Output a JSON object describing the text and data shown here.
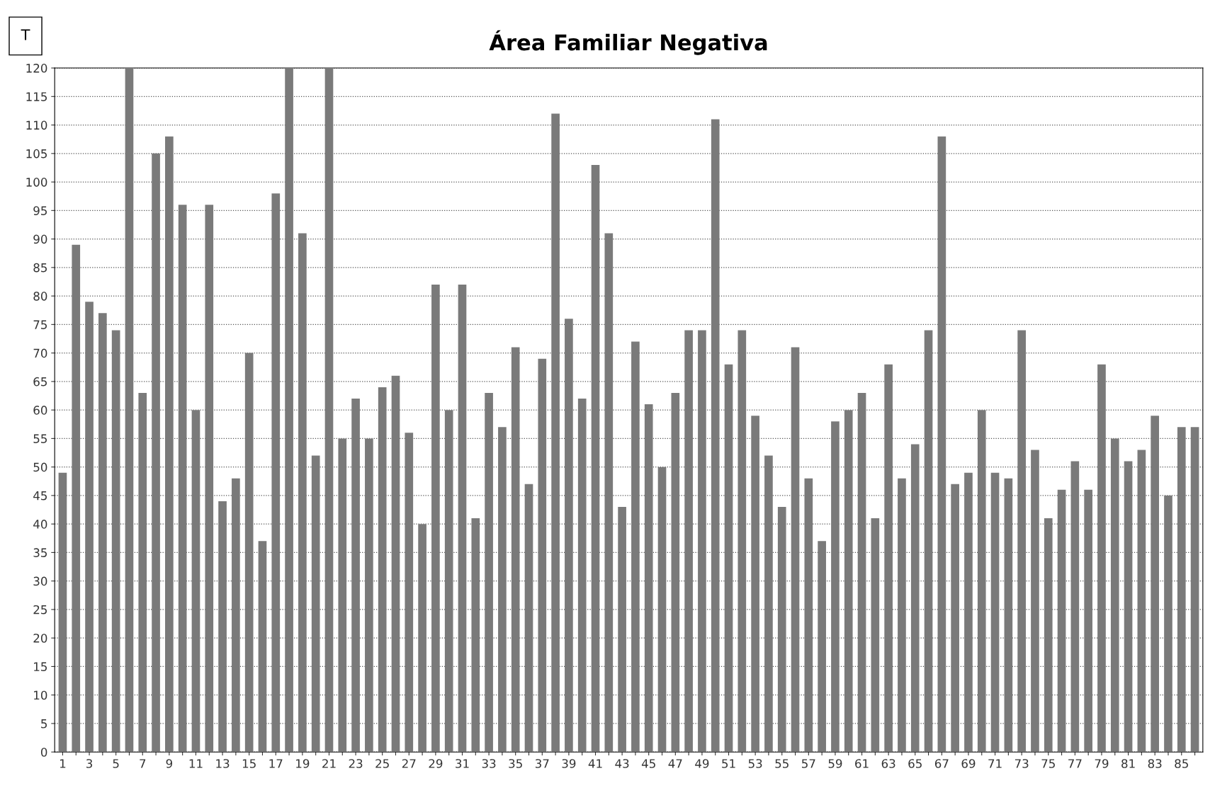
{
  "chart_data": {
    "type": "bar",
    "title": "Área Familiar Negativa",
    "ylabel": "T",
    "categories": [
      "1",
      null,
      "3",
      null,
      "5",
      null,
      "7",
      null,
      "9",
      null,
      "11",
      null,
      "13",
      null,
      "15",
      null,
      "17",
      null,
      "19",
      null,
      "21",
      null,
      "23",
      null,
      "25",
      null,
      "27",
      null,
      "29",
      null,
      "31",
      null,
      "33",
      null,
      "35",
      null,
      "37",
      null,
      "39",
      null,
      "41",
      null,
      "43",
      null,
      "45",
      null,
      "47",
      null,
      "49",
      null,
      "51",
      null,
      "53",
      null,
      "55",
      null,
      "57",
      null,
      "59",
      null,
      "61",
      null,
      "63",
      null,
      "65",
      null,
      "67",
      null,
      "69",
      null,
      "71",
      null,
      "73",
      null,
      "75",
      null,
      "77",
      null,
      "79",
      null,
      "81",
      null,
      "83",
      null,
      "85",
      null
    ],
    "values": [
      49,
      89,
      79,
      77,
      74,
      120,
      63,
      105,
      108,
      96,
      60,
      96,
      44,
      48,
      70,
      37,
      98,
      120,
      91,
      52,
      120,
      55,
      62,
      55,
      64,
      66,
      56,
      40,
      82,
      60,
      82,
      41,
      63,
      57,
      71,
      47,
      69,
      112,
      76,
      62,
      103,
      91,
      43,
      72,
      61,
      50,
      63,
      74,
      74,
      111,
      68,
      74,
      59,
      52,
      43,
      71,
      48,
      37,
      58,
      60,
      63,
      41,
      68,
      48,
      54,
      74,
      108,
      47,
      49,
      60,
      49,
      48,
      74,
      53,
      41,
      46,
      51,
      46,
      68,
      55,
      51,
      53,
      59,
      45,
      57,
      57
    ],
    "color": "#7a7a7a",
    "ylim": [
      0,
      120
    ],
    "yticks": [
      0,
      5,
      10,
      15,
      20,
      25,
      30,
      35,
      40,
      45,
      50,
      55,
      60,
      65,
      70,
      75,
      80,
      85,
      90,
      95,
      100,
      105,
      110,
      115,
      120
    ],
    "grid": "y"
  }
}
